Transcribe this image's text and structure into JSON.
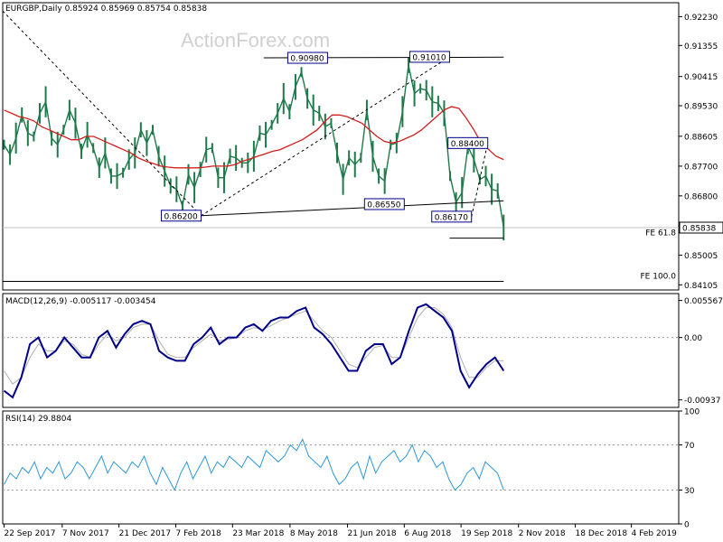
{
  "chart_data": {
    "type": "line",
    "watermark": "ActionForex.com",
    "main": {
      "header": "EURGBP,Daily  0.85924 0.85969 0.85754 0.85838",
      "y_ticks": [
        "0.92230",
        "0.91355",
        "0.90415",
        "0.89530",
        "0.88605",
        "0.87700",
        "0.86800",
        "0.85838",
        "0.85005",
        "0.84105"
      ],
      "ylim": [
        0.8395,
        0.9265
      ],
      "last_price": "0.85838",
      "annotations": [
        {
          "label": "0.86200",
          "x": 0.2935,
          "y": 0.862
        },
        {
          "label": "0.90980",
          "x": 0.4805,
          "y": 0.9098
        },
        {
          "label": "0.91010",
          "x": 0.661,
          "y": 0.9101
        },
        {
          "label": "0.86550",
          "x": 0.594,
          "y": 0.8655
        },
        {
          "label": "0.88400",
          "x": 0.7175,
          "y": 0.884
        },
        {
          "label": "0.86170",
          "x": 0.6935,
          "y": 0.8617
        }
      ],
      "fe_labels": [
        {
          "label": "FE 61.8",
          "y": 0.8552
        },
        {
          "label": "FE 100.0",
          "y": 0.8421
        }
      ],
      "close": [
        0.8835,
        0.8805,
        0.8855,
        0.8925,
        0.887,
        0.886,
        0.893,
        0.8965,
        0.8855,
        0.8835,
        0.888,
        0.894,
        0.89,
        0.8815,
        0.8865,
        0.8825,
        0.8765,
        0.881,
        0.874,
        0.874,
        0.875,
        0.879,
        0.881,
        0.888,
        0.884,
        0.888,
        0.88,
        0.8755,
        0.871,
        0.87,
        0.865,
        0.8745,
        0.8705,
        0.876,
        0.882,
        0.8825,
        0.8735,
        0.8735,
        0.88,
        0.8795,
        0.878,
        0.878,
        0.88,
        0.887,
        0.8865,
        0.8895,
        0.893,
        0.8975,
        0.8935,
        0.901,
        0.9055,
        0.8975,
        0.894,
        0.893,
        0.889,
        0.89,
        0.881,
        0.873,
        0.8795,
        0.8775,
        0.8795,
        0.894,
        0.88,
        0.874,
        0.8725,
        0.8835,
        0.884,
        0.8935,
        0.9075,
        0.899,
        0.9005,
        0.9,
        0.8965,
        0.896,
        0.893,
        0.874,
        0.866,
        0.869,
        0.883,
        0.879,
        0.873,
        0.874,
        0.87,
        0.8695,
        0.8584
      ],
      "ma": [
        0.894,
        0.893,
        0.892,
        0.8915,
        0.8907,
        0.889,
        0.888,
        0.887,
        0.886,
        0.885,
        0.885,
        0.886,
        0.886,
        0.885,
        0.884,
        0.883,
        0.882,
        0.881,
        0.8795,
        0.8785,
        0.8778,
        0.877,
        0.8767,
        0.8765,
        0.8765,
        0.8765,
        0.8765,
        0.8767,
        0.877,
        0.877,
        0.877,
        0.8775,
        0.8785,
        0.8792,
        0.88,
        0.8807,
        0.8815,
        0.882,
        0.883,
        0.884,
        0.885,
        0.8865,
        0.888,
        0.8905,
        0.8925,
        0.8925,
        0.892,
        0.891,
        0.89,
        0.888,
        0.886,
        0.8845,
        0.884,
        0.8845,
        0.8855,
        0.8865,
        0.888,
        0.89,
        0.892,
        0.894,
        0.895,
        0.8945,
        0.8915,
        0.888,
        0.884,
        0.882,
        0.88,
        0.879
      ],
      "lines": [
        {
          "from": {
            "x": 0,
            "y": 0.924
          },
          "to": {
            "x": 0.2935,
            "y": 0.862
          },
          "style": "dashed"
        },
        {
          "from": {
            "x": 0.2935,
            "y": 0.862
          },
          "to": {
            "x": 0.661,
            "y": 0.9101
          },
          "style": "dashed"
        },
        {
          "from": {
            "x": 0.2935,
            "y": 0.862
          },
          "to": {
            "x": 0.741,
            "y": 0.8665
          },
          "style": "solid"
        },
        {
          "from": {
            "x": 0.386,
            "y": 0.9098
          },
          "to": {
            "x": 0.741,
            "y": 0.91
          },
          "style": "solid"
        },
        {
          "from": {
            "x": 0.6935,
            "y": 0.8617
          },
          "to": {
            "x": 0.7175,
            "y": 0.884
          },
          "style": "dashed"
        },
        {
          "from": {
            "x": 0.661,
            "y": 0.8552
          },
          "to": {
            "x": 0.741,
            "y": 0.8552
          },
          "style": "solid"
        },
        {
          "from": {
            "x": 0,
            "y": 0.8421
          },
          "to": {
            "x": 0.741,
            "y": 0.8421
          },
          "style": "solid"
        }
      ]
    },
    "macd": {
      "header": "MACD(12,26,9) -0.005117 -0.003454",
      "y_ticks": [
        "0.005567",
        "0.00",
        "-0.00937"
      ],
      "ylim": [
        -0.0105,
        0.0066
      ],
      "hist": [
        -0.008,
        -0.009,
        -0.006,
        -0.001,
        0.0,
        -0.003,
        -0.002,
        0.0,
        -0.0015,
        -0.003,
        -0.003,
        0.0,
        0.001,
        -0.0015,
        0.0005,
        0.002,
        0.0025,
        0.002,
        -0.002,
        -0.003,
        -0.0035,
        -0.0035,
        -0.001,
        0.0,
        0.0015,
        -0.001,
        0.0,
        0.0,
        0.0015,
        0.002,
        0.001,
        0.0025,
        0.003,
        0.003,
        0.004,
        0.0045,
        0.0015,
        0.0005,
        -0.001,
        -0.003,
        -0.005,
        -0.005,
        -0.002,
        -0.001,
        -0.001,
        -0.004,
        -0.003,
        0.001,
        0.0045,
        0.005,
        0.004,
        0.003,
        0.001,
        -0.005,
        -0.0075,
        -0.0055,
        -0.004,
        -0.003,
        -0.005
      ],
      "signal": [
        -0.005,
        -0.007,
        -0.006,
        -0.003,
        -0.001,
        -0.002,
        -0.002,
        -0.0005,
        -0.001,
        -0.0025,
        -0.003,
        -0.001,
        0.0005,
        -0.0005,
        0.0,
        0.0015,
        0.002,
        0.002,
        -0.0005,
        -0.0025,
        -0.003,
        -0.003,
        -0.0015,
        -0.0005,
        0.0005,
        -0.0005,
        -0.0003,
        0.0,
        0.001,
        0.0015,
        0.0012,
        0.0018,
        0.0025,
        0.003,
        0.0035,
        0.004,
        0.0025,
        0.001,
        0.0,
        -0.002,
        -0.004,
        -0.0045,
        -0.003,
        -0.0015,
        -0.0012,
        -0.003,
        -0.003,
        0.0,
        0.003,
        0.0045,
        0.0045,
        0.0035,
        0.0015,
        -0.003,
        -0.006,
        -0.006,
        -0.0045,
        -0.0035,
        -0.0035
      ]
    },
    "rsi": {
      "header": "RSI(14) 29.8804",
      "y_ticks": [
        "100",
        "70",
        "30",
        "0"
      ],
      "ylim": [
        0,
        100
      ],
      "levels": [
        70,
        30
      ],
      "values": [
        35,
        45,
        40,
        50,
        45,
        55,
        40,
        50,
        45,
        55,
        40,
        45,
        55,
        50,
        40,
        50,
        60,
        45,
        55,
        50,
        45,
        55,
        50,
        60,
        45,
        35,
        50,
        40,
        30,
        45,
        55,
        40,
        50,
        60,
        45,
        55,
        50,
        60,
        55,
        50,
        60,
        55,
        50,
        65,
        60,
        55,
        60,
        70,
        65,
        75,
        60,
        55,
        50,
        60,
        45,
        35,
        40,
        50,
        55,
        40,
        60,
        45,
        55,
        60,
        65,
        55,
        60,
        70,
        55,
        65,
        60,
        50,
        55,
        40,
        30,
        35,
        45,
        50,
        40,
        55,
        50,
        45,
        30
      ]
    },
    "x_ticks": [
      "22 Sep 2017",
      "7 Nov 2017",
      "21 Dec 2017",
      "7 Feb 2018",
      "23 Mar 2018",
      "8 May 2018",
      "21 Jun 2018",
      "6 Aug 2018",
      "19 Sep 2018",
      "2 Nov 2018",
      "18 Dec 2018",
      "4 Feb 2019"
    ],
    "colors": {
      "candle": "#1f7a4a",
      "ma": "#d41e1e",
      "macd_hist": "#00008b",
      "macd_signal": "#b0b0b0",
      "rsi": "#2c97d6",
      "grid": "#9a9a9a",
      "label_border": "#00008b",
      "watermark": "#d0d0d0"
    }
  }
}
